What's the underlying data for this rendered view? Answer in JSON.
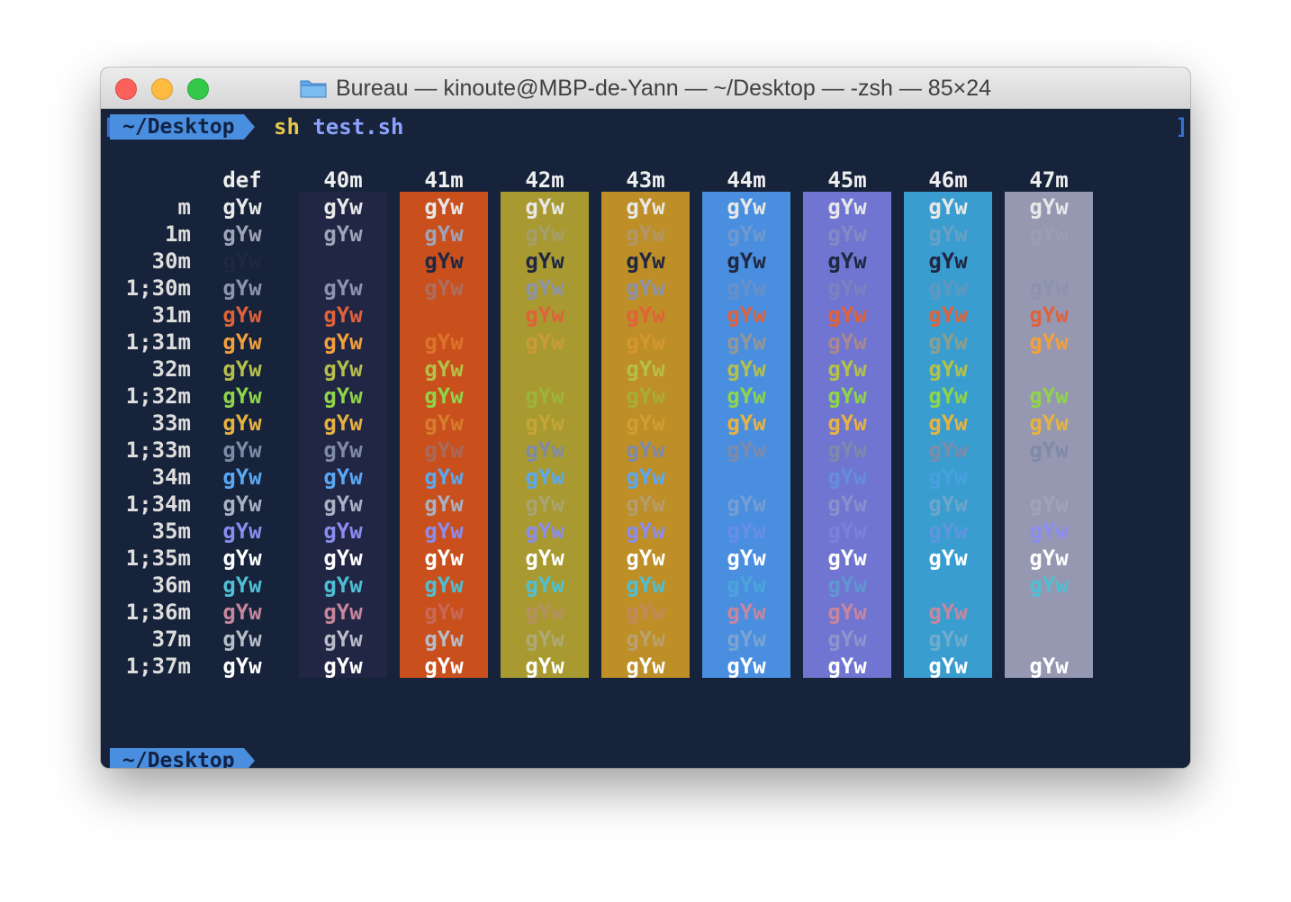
{
  "window": {
    "title": "Bureau — kinoute@MBP-de-Yann — ~/Desktop — -zsh — 85×24",
    "icon": "folder-icon"
  },
  "terminal": {
    "brackets": {
      "left": "[",
      "right": "]"
    },
    "prompt1": {
      "path": "~/Desktop",
      "cmd": "sh",
      "arg": "test.sh"
    },
    "prompt2": {
      "path": "~/Desktop"
    },
    "cell_text": "gYw",
    "col_headers": [
      "def",
      "40m",
      "41m",
      "42m",
      "43m",
      "44m",
      "45m",
      "46m",
      "47m"
    ],
    "bg_colors": [
      null,
      "#222645",
      "#c9501c",
      "#a89a31",
      "#be8e27",
      "#4a8fdf",
      "#6f75d1",
      "#3a9dcf",
      "#9698b1"
    ],
    "row_labels": [
      "m",
      "1m",
      "30m",
      "1;30m",
      "31m",
      "1;31m",
      "32m",
      "1;32m",
      "33m",
      "1;33m",
      "34m",
      "1;34m",
      "35m",
      "1;35m",
      "36m",
      "1;36m",
      "37m",
      "1;37m"
    ],
    "row_fg_colors": [
      "#e8e8e8",
      "#a0a4b8",
      "#1f2742",
      "#8c93ad",
      "#e0623a",
      "#f2a03d",
      "#b5c04a",
      "#8fd44a",
      "#e6b341",
      "#7f8aa8",
      "#59a8f3",
      "#a9b1c4",
      "#8c8cf0",
      "#ffffff",
      "#4fbfd4",
      "#c7869e",
      "#b7bcc8",
      "#ffffff"
    ],
    "dim_cells": [
      [
        1,
        3
      ],
      [
        1,
        4
      ],
      [
        1,
        5
      ],
      [
        1,
        6
      ],
      [
        1,
        7
      ],
      [
        1,
        8
      ],
      [
        3,
        2
      ],
      [
        3,
        5
      ],
      [
        3,
        6
      ],
      [
        3,
        7
      ],
      [
        5,
        2
      ],
      [
        5,
        3
      ],
      [
        5,
        4
      ],
      [
        5,
        5
      ],
      [
        5,
        6
      ],
      [
        5,
        7
      ],
      [
        7,
        3
      ],
      [
        7,
        4
      ],
      [
        8,
        2
      ],
      [
        8,
        3
      ],
      [
        8,
        4
      ],
      [
        9,
        2
      ],
      [
        10,
        5
      ],
      [
        10,
        6
      ],
      [
        10,
        7
      ],
      [
        11,
        3
      ],
      [
        11,
        4
      ],
      [
        11,
        5
      ],
      [
        11,
        6
      ],
      [
        11,
        7
      ],
      [
        11,
        8
      ],
      [
        12,
        5
      ],
      [
        12,
        6
      ],
      [
        12,
        7
      ],
      [
        14,
        5
      ],
      [
        14,
        6
      ],
      [
        15,
        2
      ],
      [
        15,
        3
      ],
      [
        15,
        4
      ],
      [
        16,
        3
      ],
      [
        16,
        4
      ],
      [
        16,
        5
      ],
      [
        16,
        6
      ],
      [
        16,
        7
      ],
      [
        16,
        8
      ]
    ],
    "blank_cells": [
      [
        2,
        1
      ],
      [
        2,
        8
      ],
      [
        4,
        2
      ],
      [
        6,
        3
      ],
      [
        6,
        8
      ],
      [
        10,
        5
      ],
      [
        10,
        8
      ],
      [
        14,
        7
      ],
      [
        15,
        8
      ],
      [
        16,
        8
      ]
    ]
  }
}
